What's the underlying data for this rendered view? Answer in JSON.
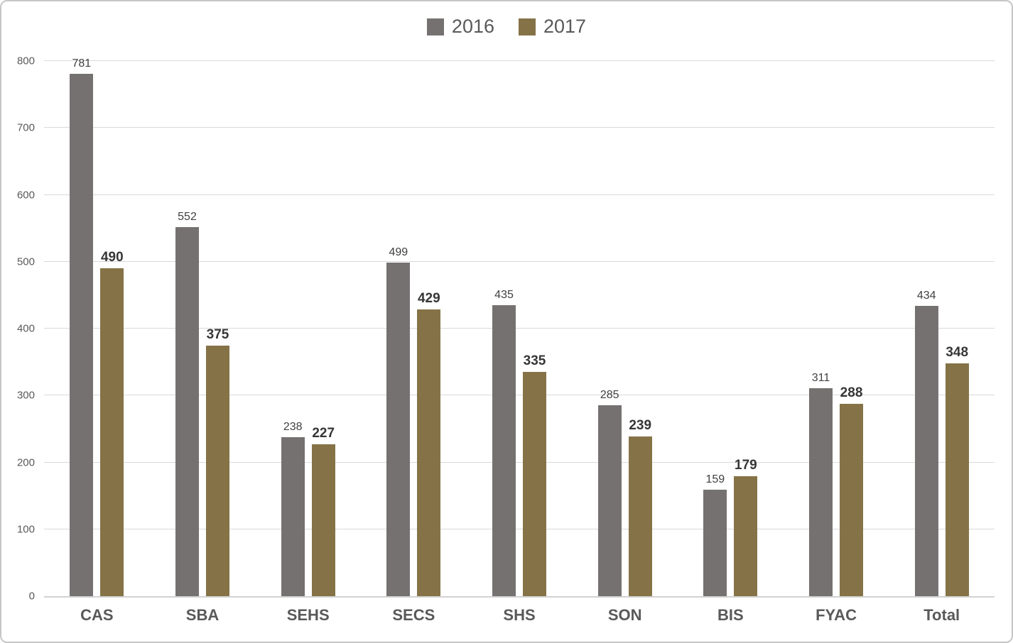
{
  "legend": {
    "items": [
      {
        "label": "2016",
        "color": "#767171"
      },
      {
        "label": "2017",
        "color": "#857347"
      }
    ]
  },
  "chart_data": {
    "type": "bar",
    "title": "",
    "xlabel": "",
    "ylabel": "",
    "categories": [
      "CAS",
      "SBA",
      "SEHS",
      "SECS",
      "SHS",
      "SON",
      "BIS",
      "FYAC",
      "Total"
    ],
    "series": [
      {
        "name": "2016",
        "color": "#767171",
        "values": [
          781,
          552,
          238,
          499,
          435,
          285,
          159,
          311,
          434
        ]
      },
      {
        "name": "2017",
        "color": "#857347",
        "values": [
          490,
          375,
          227,
          429,
          335,
          239,
          179,
          288,
          348
        ]
      }
    ],
    "ylim": [
      0,
      800
    ],
    "yticks": [
      0,
      100,
      200,
      300,
      400,
      500,
      600,
      700,
      800
    ],
    "grid": true,
    "legend_position": "top-center",
    "value_labels": true
  }
}
